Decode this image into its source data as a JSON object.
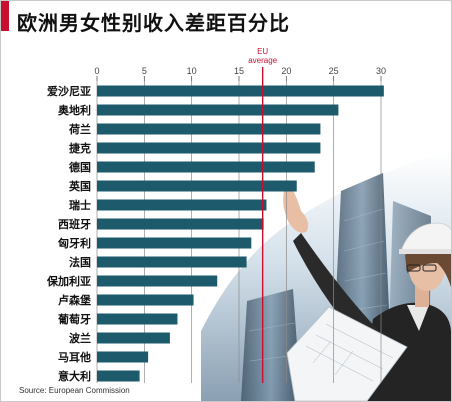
{
  "title": "欧洲男女性别收入差距百分比",
  "source": "Source: European Commission",
  "chart_data": {
    "type": "bar",
    "orientation": "horizontal",
    "title": "欧洲男女性别收入差距百分比",
    "xlabel": "",
    "ylabel": "",
    "xlim": [
      0,
      30
    ],
    "ticks": [
      0,
      5,
      10,
      15,
      20,
      25,
      30
    ],
    "grid": true,
    "categories": [
      "爱沙尼亚",
      "奥地利",
      "荷兰",
      "捷克",
      "德国",
      "英国",
      "瑞士",
      "西班牙",
      "匈牙利",
      "法国",
      "保加利亚",
      "卢森堡",
      "葡萄牙",
      "波兰",
      "马耳他",
      "意大利"
    ],
    "values": [
      30.3,
      25.5,
      23.6,
      23.6,
      23.0,
      21.1,
      17.9,
      17.6,
      16.3,
      15.8,
      12.7,
      10.2,
      8.5,
      7.7,
      5.4,
      4.5
    ],
    "average": {
      "label_line1": "EU",
      "label_line2": "average",
      "value": 17.5
    },
    "colors": {
      "bar": "#1d5a6c",
      "average_line": "#c8102e",
      "grid": "#8a8a8a",
      "accent": "#c8102e"
    }
  }
}
